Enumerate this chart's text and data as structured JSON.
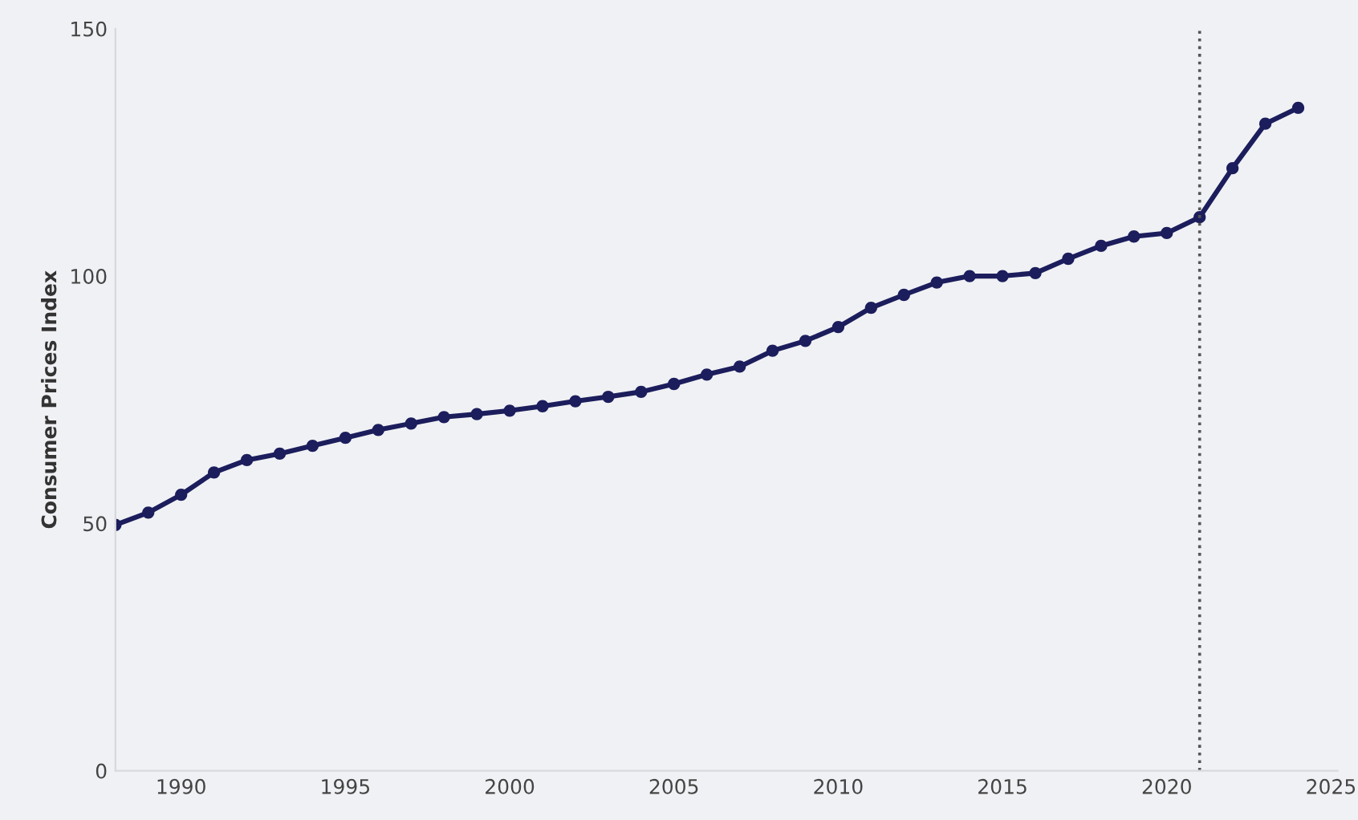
{
  "chart_data": {
    "type": "line",
    "ylabel": "Consumer Prices Index",
    "x": [
      1988,
      1989,
      1990,
      1991,
      1992,
      1993,
      1994,
      1995,
      1996,
      1997,
      1998,
      1999,
      2000,
      2001,
      2002,
      2003,
      2004,
      2005,
      2006,
      2007,
      2008,
      2009,
      2010,
      2011,
      2012,
      2013,
      2014,
      2015,
      2016,
      2017,
      2018,
      2019,
      2020,
      2021,
      2022,
      2023,
      2024
    ],
    "series": [
      {
        "color": "#1c1d5c",
        "values": [
          49.7,
          52.2,
          55.8,
          60.3,
          62.8,
          64.1,
          65.7,
          67.3,
          68.9,
          70.2,
          71.5,
          72.1,
          72.8,
          73.7,
          74.7,
          75.6,
          76.6,
          78.2,
          80.1,
          81.7,
          84.9,
          86.9,
          89.7,
          93.6,
          96.2,
          98.7,
          100,
          100,
          100.6,
          103.5,
          106.1,
          108,
          108.7,
          111.9,
          121.8,
          130.8,
          134
        ]
      }
    ],
    "xlim": [
      1988,
      2025.2
    ],
    "xticks": [
      1990,
      1995,
      2000,
      2005,
      2010,
      2015,
      2020,
      2025
    ],
    "ylim": [
      0,
      150
    ],
    "yticks": [
      0,
      50,
      100,
      150
    ],
    "ref_lines": [
      {
        "axis": "x",
        "value": 2021,
        "color": "#555555",
        "line_style": "dotted"
      }
    ],
    "marker": "circle",
    "line_style": "solid",
    "grid": false
  }
}
